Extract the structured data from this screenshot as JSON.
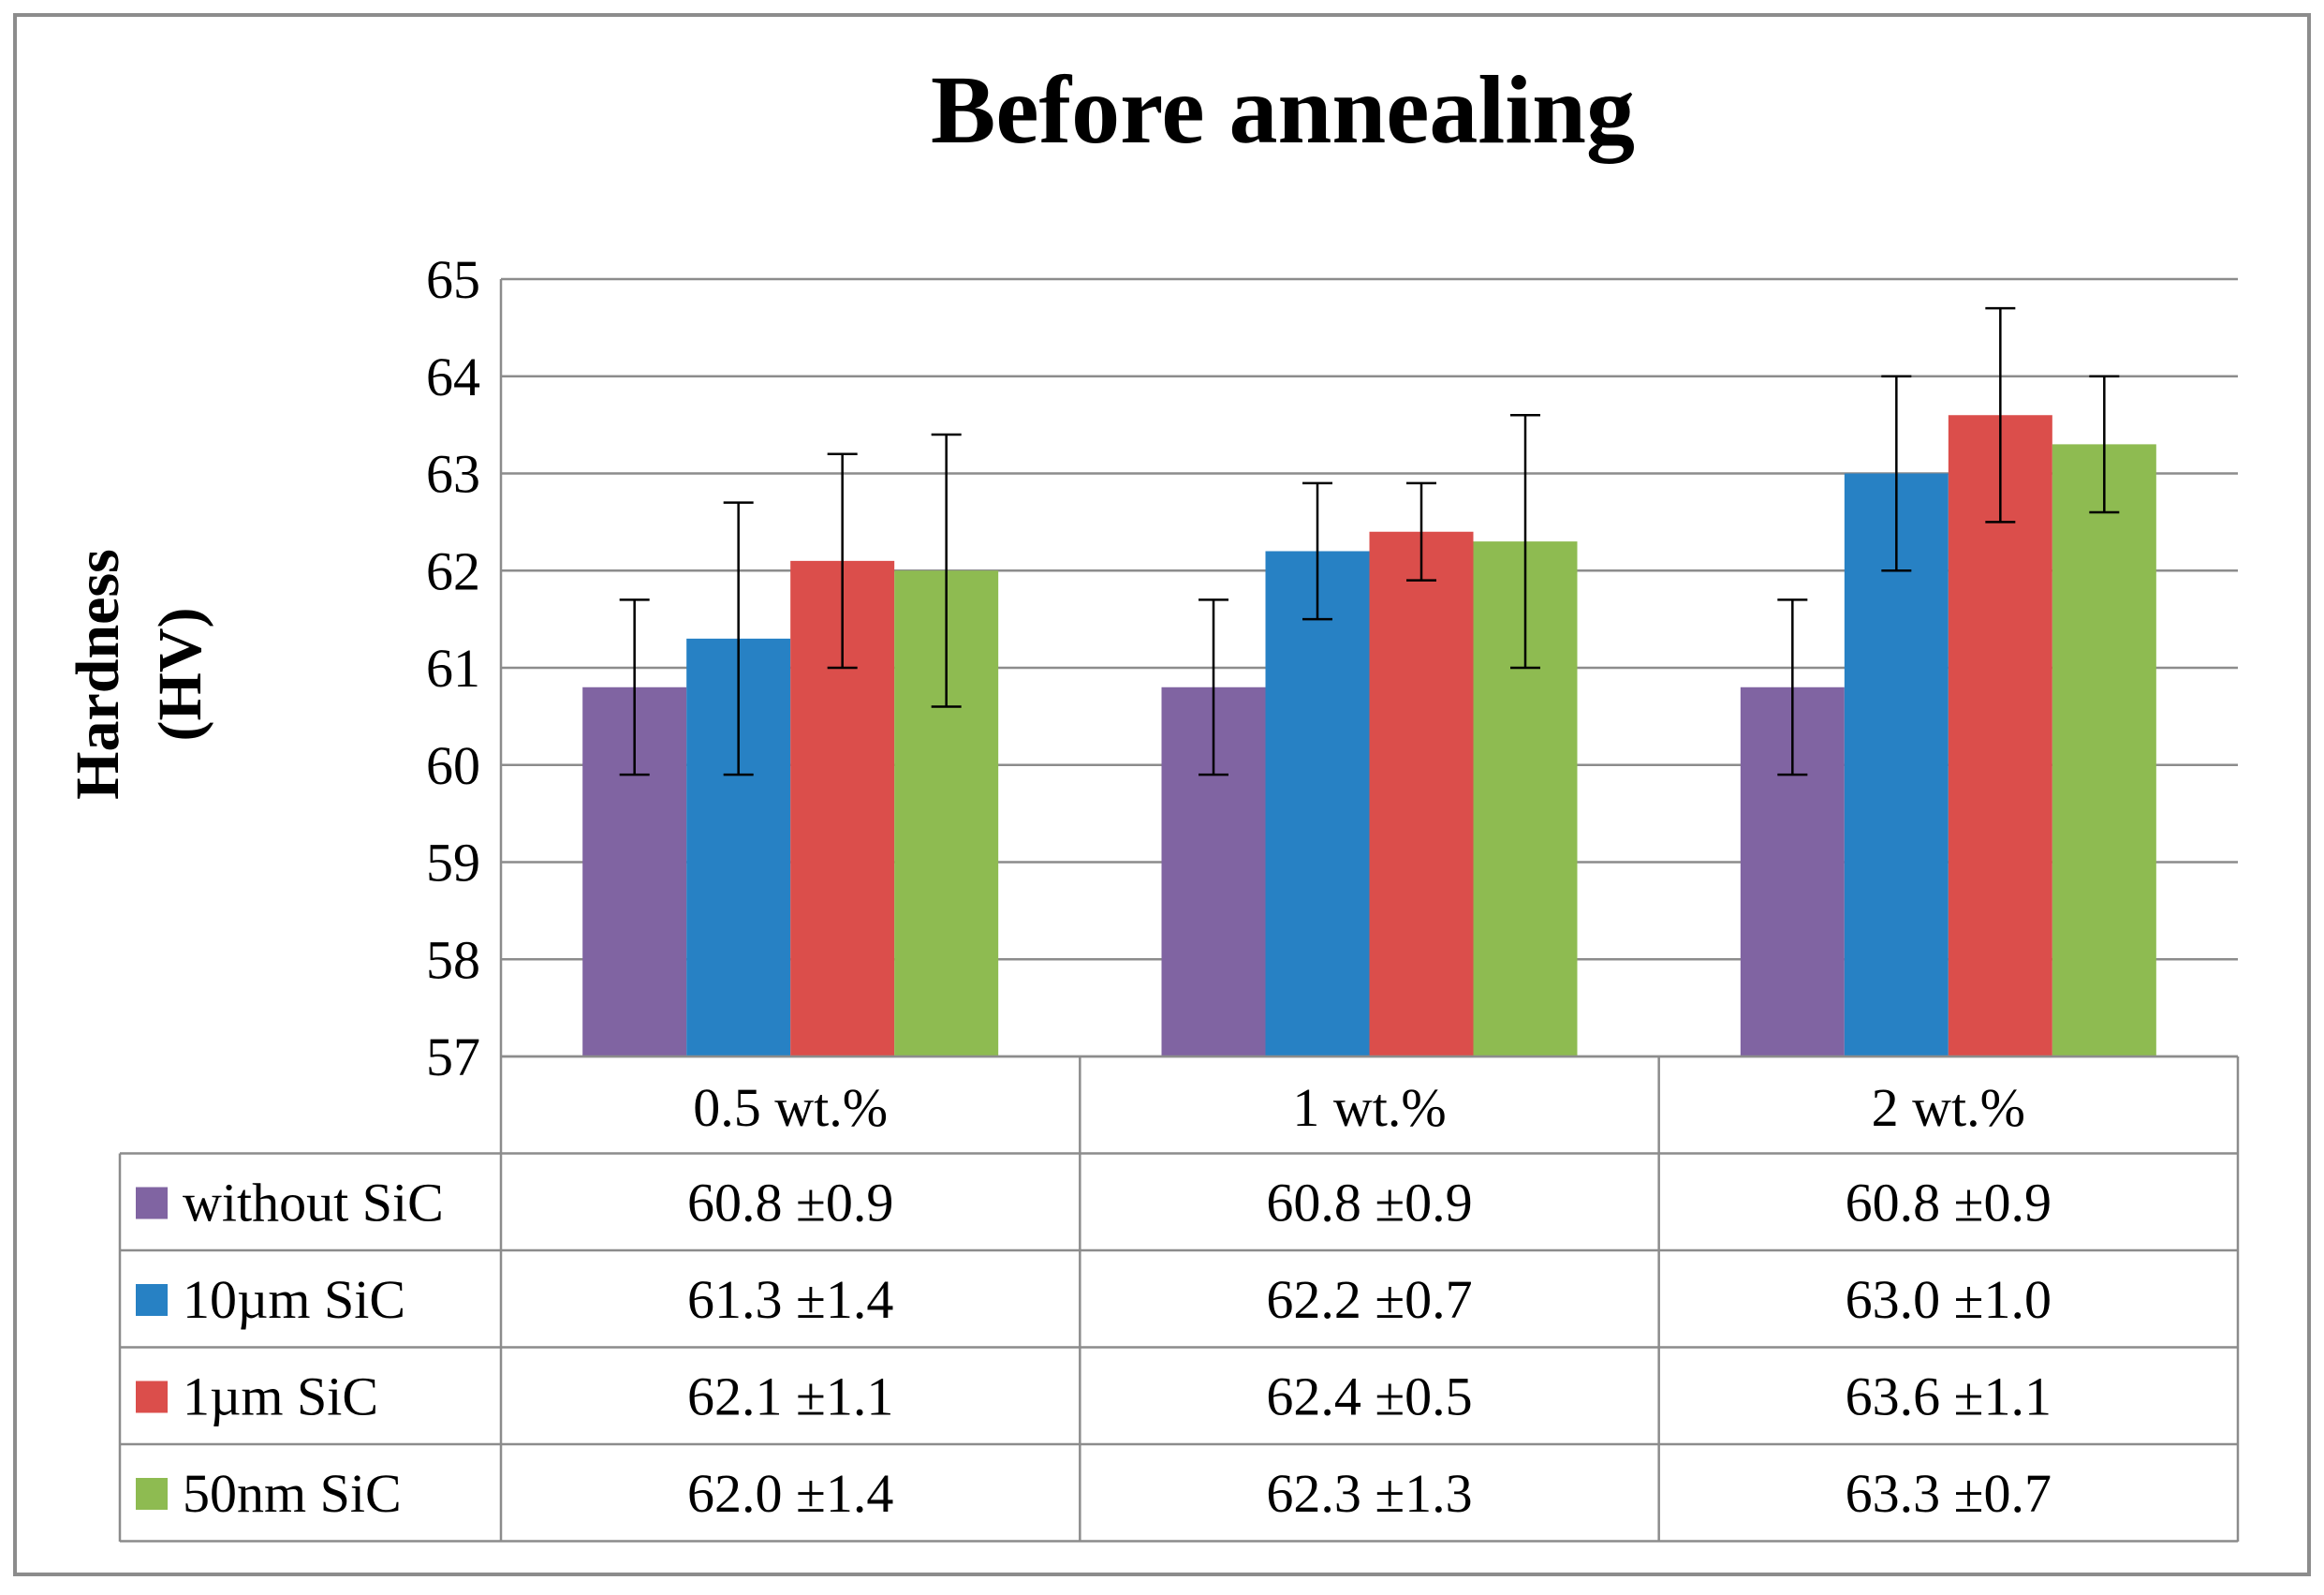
{
  "chart_data": {
    "type": "bar",
    "title": "Before annealing",
    "ylabel": "Hardness (HV)",
    "ylabel_lines": [
      "Hardness",
      "(HV)"
    ],
    "xlabel": "",
    "ylim": [
      57,
      65
    ],
    "yticks": [
      57,
      58,
      59,
      60,
      61,
      62,
      63,
      64,
      65
    ],
    "grid": true,
    "legend": "data-table-left",
    "categories": [
      "0.5 wt.%",
      "1 wt.%",
      "2 wt.%"
    ],
    "series": [
      {
        "name": "without SiC",
        "color": "#8064A2",
        "values": [
          60.8,
          60.8,
          60.8
        ],
        "errors": [
          0.9,
          0.9,
          0.9
        ],
        "labels": [
          "60.8 ±0.9",
          "60.8 ±0.9",
          "60.8 ±0.9"
        ]
      },
      {
        "name": "10µm SiC",
        "color": "#2781C4",
        "values": [
          61.3,
          62.2,
          63.0
        ],
        "errors": [
          1.4,
          0.7,
          1.0
        ],
        "labels": [
          "61.3 ±1.4",
          "62.2 ±0.7",
          "63.0 ±1.0"
        ]
      },
      {
        "name": "1µm SiC",
        "color": "#DB4E4B",
        "values": [
          62.1,
          62.4,
          63.6
        ],
        "errors": [
          1.1,
          0.5,
          1.1
        ],
        "labels": [
          "62.1 ±1.1",
          "62.4 ±0.5",
          "63.6 ±1.1"
        ]
      },
      {
        "name": "50nm SiC",
        "color": "#8EBB51",
        "values": [
          62.0,
          62.3,
          63.3
        ],
        "errors": [
          1.4,
          1.3,
          0.7
        ],
        "labels": [
          "62.0 ±1.4",
          "62.3 ±1.3",
          "63.3 ±0.7"
        ]
      }
    ]
  }
}
